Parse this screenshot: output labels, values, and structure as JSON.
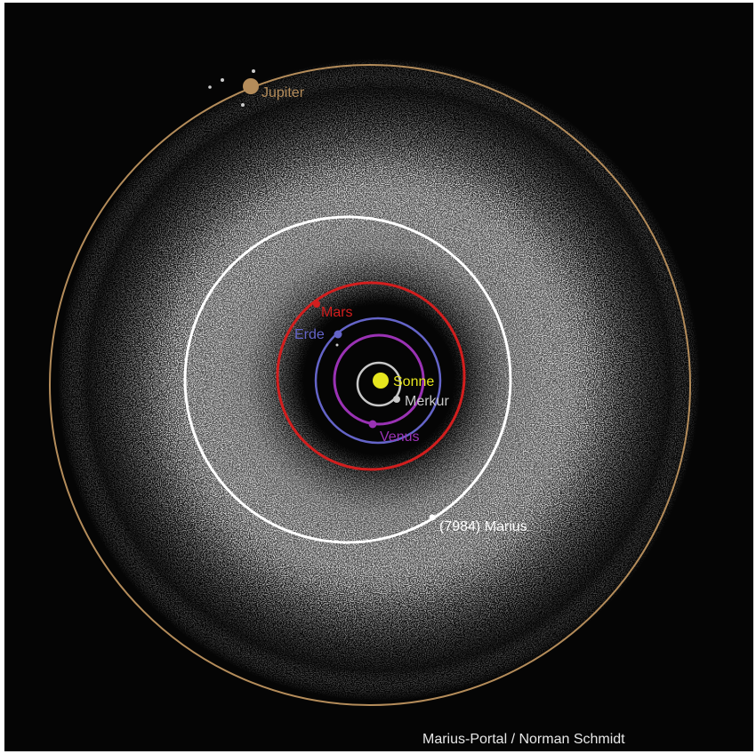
{
  "credit": "Marius-Portal / Norman Schmidt",
  "colors": {
    "background": "#050505",
    "belt": "#b4b4b4",
    "sonne": "#e6e61e",
    "merkur": "#c8c8c8",
    "venus": "#9a32b4",
    "erde": "#6464c8",
    "mars": "#d21e1e",
    "marius": "#ffffff",
    "jupiter": "#b48c5a"
  },
  "bodies": {
    "sonne": {
      "label": "Sonne"
    },
    "merkur": {
      "label": "Merkur"
    },
    "venus": {
      "label": "Venus"
    },
    "erde": {
      "label": "Erde"
    },
    "mars": {
      "label": "Mars"
    },
    "marius": {
      "label": "(7984) Marius"
    },
    "jupiter": {
      "label": "Jupiter"
    }
  }
}
